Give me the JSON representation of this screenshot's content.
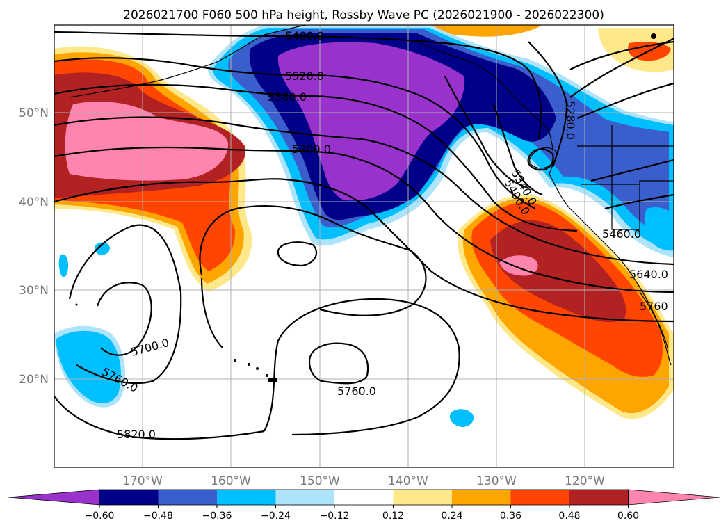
{
  "title": "2026021700 F060 500 hPa height, Rossby Wave PC (2026021900 - 2026022300)",
  "map": {
    "lon_ticks": [
      "170°W",
      "160°W",
      "150°W",
      "140°W",
      "130°W",
      "120°W"
    ],
    "lat_ticks": [
      "50°N",
      "40°N",
      "30°N",
      "20°N"
    ],
    "contour_labels": [
      "5400.0",
      "5520.0",
      "5580.0",
      "5700.0",
      "5340.0",
      "5400.0",
      "5280.0",
      "5460.0",
      "5640.0",
      "5760",
      "5700.0",
      "5760.0",
      "5760.0",
      "5820.0"
    ],
    "colors": {
      "strong_pos": "#ff85b0",
      "pos_048": "#b22222",
      "pos_036": "#ff4500",
      "pos_024": "#ffa500",
      "pos_012": "#ffe88a",
      "neg_012": "#ade3fb",
      "neg_024": "#00bfff",
      "neg_036": "#3a5fcd",
      "neg_048": "#000088",
      "strong_neg": "#9932cc"
    }
  },
  "colorbar": {
    "ticks": [
      "−0.60",
      "−0.48",
      "−0.36",
      "−0.24",
      "−0.12",
      "0.12",
      "0.24",
      "0.36",
      "0.48",
      "0.60"
    ],
    "colors": [
      "#9932cc",
      "#000088",
      "#3a5fcd",
      "#00bfff",
      "#ade3fb",
      "#ffffff",
      "#ffe88a",
      "#ffa500",
      "#ff4500",
      "#b22222",
      "#ff85b0"
    ]
  }
}
